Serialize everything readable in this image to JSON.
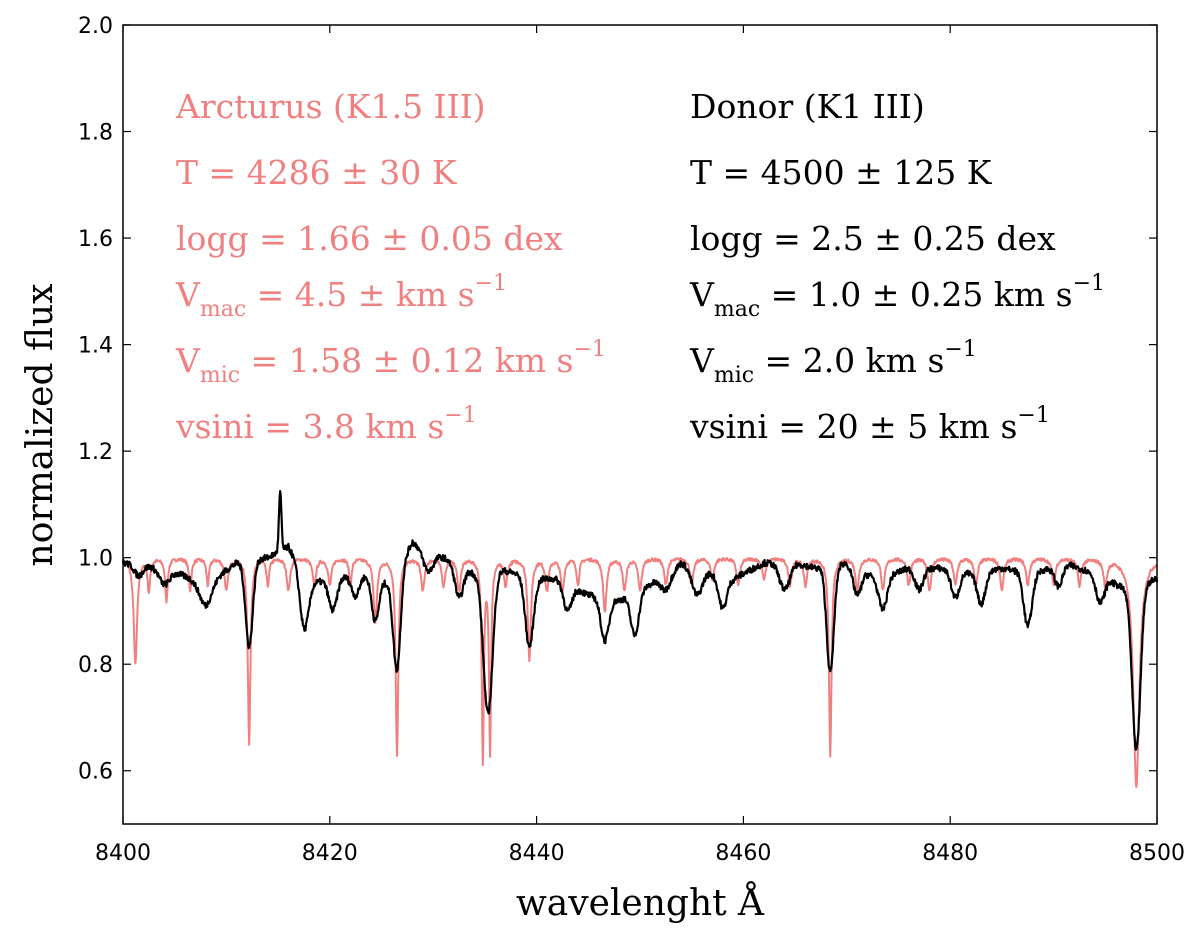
{
  "chart_data": {
    "type": "line",
    "xlabel": "wavelenght Å",
    "ylabel": "normalized flux",
    "xlim": [
      8400,
      8500
    ],
    "ylim": [
      0.5,
      2.0
    ],
    "xticks": [
      "8400",
      "8420",
      "8440",
      "8460",
      "8480",
      "8500"
    ],
    "yticks": [
      "0.6",
      "0.8",
      "1.0",
      "1.2",
      "1.4",
      "1.6",
      "1.8",
      "2.0"
    ],
    "colors": {
      "arcturus": "#f08080",
      "donor": "#000000"
    },
    "series": [
      {
        "name": "Arcturus (K1.5 III)",
        "color": "#f08080",
        "continuum": 1.0,
        "lines": [
          [
            8401.2,
            0.2,
            0.2
          ],
          [
            8402.5,
            0.06,
            0.15
          ],
          [
            8404.2,
            0.08,
            0.15
          ],
          [
            8406.5,
            0.06,
            0.15
          ],
          [
            8408.2,
            0.05,
            0.15
          ],
          [
            8410.0,
            0.06,
            0.2
          ],
          [
            8412.2,
            0.35,
            0.15
          ],
          [
            8414.0,
            0.05,
            0.15
          ],
          [
            8416.0,
            0.06,
            0.2
          ],
          [
            8418.5,
            0.05,
            0.2
          ],
          [
            8420.0,
            0.05,
            0.2
          ],
          [
            8422.0,
            0.05,
            0.15
          ],
          [
            8424.4,
            0.12,
            0.2
          ],
          [
            8426.5,
            0.37,
            0.15
          ],
          [
            8429.0,
            0.06,
            0.2
          ],
          [
            8431.0,
            0.05,
            0.2
          ],
          [
            8432.5,
            0.06,
            0.2
          ],
          [
            8434.8,
            0.38,
            0.12
          ],
          [
            8435.5,
            0.36,
            0.12
          ],
          [
            8437.0,
            0.05,
            0.2
          ],
          [
            8439.3,
            0.19,
            0.18
          ],
          [
            8441.0,
            0.06,
            0.2
          ],
          [
            8442.5,
            0.06,
            0.2
          ],
          [
            8444.0,
            0.05,
            0.15
          ],
          [
            8446.6,
            0.1,
            0.2
          ],
          [
            8448.5,
            0.06,
            0.2
          ],
          [
            8450.0,
            0.06,
            0.2
          ],
          [
            8452.5,
            0.05,
            0.2
          ],
          [
            8455.0,
            0.05,
            0.2
          ],
          [
            8457.0,
            0.04,
            0.2
          ],
          [
            8459.5,
            0.05,
            0.2
          ],
          [
            8462.0,
            0.04,
            0.2
          ],
          [
            8464.5,
            0.05,
            0.2
          ],
          [
            8466.0,
            0.05,
            0.2
          ],
          [
            8468.4,
            0.37,
            0.15
          ],
          [
            8471.0,
            0.06,
            0.2
          ],
          [
            8473.5,
            0.06,
            0.2
          ],
          [
            8476.0,
            0.05,
            0.2
          ],
          [
            8478.0,
            0.06,
            0.2
          ],
          [
            8480.5,
            0.05,
            0.2
          ],
          [
            8482.5,
            0.05,
            0.2
          ],
          [
            8485.0,
            0.06,
            0.2
          ],
          [
            8487.5,
            0.05,
            0.2
          ],
          [
            8490.0,
            0.05,
            0.2
          ],
          [
            8492.5,
            0.05,
            0.2
          ],
          [
            8495.0,
            0.05,
            0.2
          ],
          [
            8498.0,
            0.43,
            0.35
          ]
        ]
      },
      {
        "name": "Donor (K1 III)",
        "color": "#000000",
        "emission": [
          8415.2,
          0.11,
          0.12
        ],
        "continuum_knots": [
          [
            8400,
            0.99
          ],
          [
            8404,
            0.98
          ],
          [
            8408,
            0.95
          ],
          [
            8411,
            0.99
          ],
          [
            8414,
            1.0
          ],
          [
            8416,
            1.02
          ],
          [
            8418,
            0.95
          ],
          [
            8420,
            0.96
          ],
          [
            8423,
            0.97
          ],
          [
            8426,
            0.95
          ],
          [
            8428,
            1.03
          ],
          [
            8431,
            1.0
          ],
          [
            8434,
            0.97
          ],
          [
            8436,
            0.98
          ],
          [
            8440,
            0.96
          ],
          [
            8442,
            0.96
          ],
          [
            8445,
            0.93
          ],
          [
            8448,
            0.92
          ],
          [
            8451,
            0.95
          ],
          [
            8454,
            0.99
          ],
          [
            8457,
            0.97
          ],
          [
            8459,
            0.96
          ],
          [
            8462,
            0.99
          ],
          [
            8465,
            0.99
          ],
          [
            8467,
            0.98
          ],
          [
            8470,
            0.99
          ],
          [
            8473,
            0.96
          ],
          [
            8476,
            0.98
          ],
          [
            8479,
            0.98
          ],
          [
            8482,
            0.97
          ],
          [
            8485,
            0.98
          ],
          [
            8488,
            0.97
          ],
          [
            8491,
            0.99
          ],
          [
            8494,
            0.97
          ],
          [
            8497,
            0.94
          ],
          [
            8500,
            0.96
          ]
        ],
        "lines": [
          [
            8401.5,
            0.02,
            0.4
          ],
          [
            8404.0,
            0.03,
            0.5
          ],
          [
            8408.0,
            0.04,
            0.6
          ],
          [
            8412.2,
            0.16,
            0.35
          ],
          [
            8417.5,
            0.1,
            0.4
          ],
          [
            8420.3,
            0.06,
            0.4
          ],
          [
            8422.5,
            0.04,
            0.4
          ],
          [
            8424.4,
            0.08,
            0.35
          ],
          [
            8426.5,
            0.18,
            0.35
          ],
          [
            8429.5,
            0.04,
            0.5
          ],
          [
            8432.5,
            0.06,
            0.4
          ],
          [
            8435.3,
            0.27,
            0.45
          ],
          [
            8439.3,
            0.13,
            0.4
          ],
          [
            8443.0,
            0.05,
            0.4
          ],
          [
            8446.6,
            0.08,
            0.4
          ],
          [
            8449.5,
            0.08,
            0.4
          ],
          [
            8452.5,
            0.03,
            0.5
          ],
          [
            8455.5,
            0.05,
            0.5
          ],
          [
            8458.0,
            0.06,
            0.4
          ],
          [
            8464.0,
            0.05,
            0.5
          ],
          [
            8468.4,
            0.2,
            0.35
          ],
          [
            8471.0,
            0.05,
            0.4
          ],
          [
            8473.5,
            0.06,
            0.4
          ],
          [
            8477.0,
            0.04,
            0.4
          ],
          [
            8480.5,
            0.05,
            0.4
          ],
          [
            8483.0,
            0.06,
            0.4
          ],
          [
            8487.5,
            0.1,
            0.4
          ],
          [
            8490.5,
            0.04,
            0.4
          ],
          [
            8494.5,
            0.05,
            0.4
          ],
          [
            8498.0,
            0.31,
            0.4
          ]
        ]
      }
    ],
    "annotations": {
      "arcturus": {
        "title": "Arcturus (K1.5 III)",
        "temperature": "T = 4286 ± 30 K",
        "logg": "logg = 1.66 ± 0.05 dex",
        "vmac_prefix": "V",
        "vmac_sub": "mac",
        "vmac_rest": " = 4.5 ±  km s",
        "vmac_exp": "−1",
        "vmic_prefix": "V",
        "vmic_sub": "mic",
        "vmic_rest": " = 1.58 ± 0.12 km s",
        "vmic_exp": "−1",
        "vsini_text": "vsini = 3.8 km s",
        "vsini_exp": "−1"
      },
      "donor": {
        "title": "Donor (K1 III)",
        "temperature": "T = 4500 ± 125 K",
        "logg": "logg = 2.5 ± 0.25 dex",
        "vmac_prefix": "V",
        "vmac_sub": "mac",
        "vmac_rest": " = 1.0 ± 0.25 km s",
        "vmac_exp": "−1",
        "vmic_prefix": "V",
        "vmic_sub": "mic",
        "vmic_rest": " = 2.0 km s",
        "vmic_exp": "−1",
        "vsini_text": "vsini = 20 ± 5 km s",
        "vsini_exp": "−1"
      }
    }
  }
}
